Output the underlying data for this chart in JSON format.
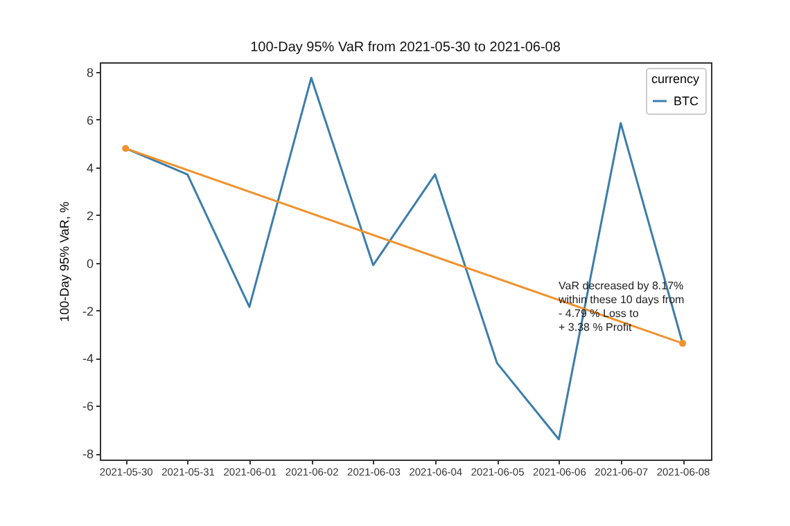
{
  "chart_data": {
    "type": "line",
    "title": "100-Day 95% VaR from 2021-05-30 to 2021-06-08",
    "ylabel": "100-Day 95% VaR, %",
    "legend_title": "currency",
    "x": [
      "2021-05-30",
      "2021-05-31",
      "2021-06-01",
      "2021-06-02",
      "2021-06-03",
      "2021-06-04",
      "2021-06-05",
      "2021-06-06",
      "2021-06-07",
      "2021-06-08"
    ],
    "xlim": [
      "2021-05-29T14:00",
      "2021-06-08T11:00"
    ],
    "xticks": [
      "2021-05-30",
      "2021-05-31",
      "2021-06-01",
      "2021-06-02",
      "2021-06-03",
      "2021-06-04",
      "2021-06-05",
      "2021-06-06",
      "2021-06-07",
      "2021-06-08"
    ],
    "series": [
      {
        "name": "BTC",
        "color": "#3b7dab",
        "values": [
          4.79,
          3.7,
          -1.85,
          7.75,
          -0.1,
          3.7,
          -4.2,
          -7.4,
          5.85,
          -3.38
        ]
      },
      {
        "type": "line",
        "color": "#f0922e",
        "marker": "circle",
        "x": [
          "2021-05-30",
          "2021-06-08"
        ],
        "values": [
          4.79,
          -3.38
        ]
      }
    ],
    "ylim": [
      -8.25,
      8.4
    ],
    "yticks": [
      -8,
      -6,
      -4,
      -2,
      0,
      2,
      4,
      6,
      8
    ],
    "grid": false,
    "legend": "top right",
    "annotations": [
      "VaR decreased by 8.17%\n within these 10 days from\n- 4.79 % Loss to\n+ 3.38 % Profit"
    ]
  }
}
